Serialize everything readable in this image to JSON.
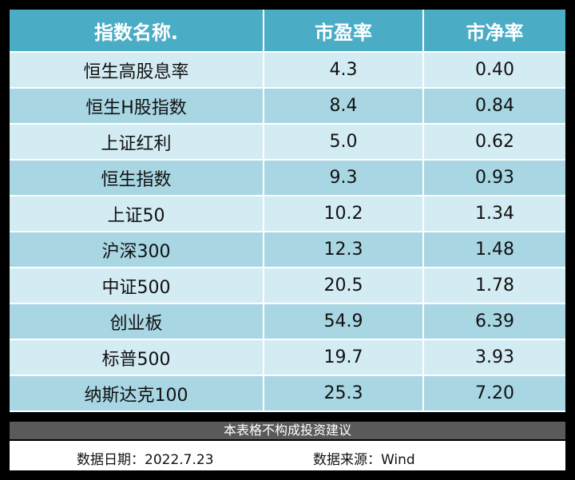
{
  "table": {
    "headers": [
      "指数名称.",
      "市盈率",
      "市净率"
    ],
    "rows": [
      {
        "name": "恒生高股息率",
        "pe": "4.3",
        "pb": "0.40"
      },
      {
        "name": "恒生H股指数",
        "pe": "8.4",
        "pb": "0.84"
      },
      {
        "name": "上证红利",
        "pe": "5.0",
        "pb": "0.62"
      },
      {
        "name": "恒生指数",
        "pe": "9.3",
        "pb": "0.93"
      },
      {
        "name": "上证50",
        "pe": "10.2",
        "pb": "1.34"
      },
      {
        "name": "沪深300",
        "pe": "12.3",
        "pb": "1.48"
      },
      {
        "name": "中证500",
        "pe": "20.5",
        "pb": "1.78"
      },
      {
        "name": "创业板",
        "pe": "54.9",
        "pb": "6.39"
      },
      {
        "name": "标普500",
        "pe": "19.7",
        "pb": "3.93"
      },
      {
        "name": "纳斯达克100",
        "pe": "25.3",
        "pb": "7.20"
      }
    ]
  },
  "footer": {
    "disclaimer": "本表格不构成投资建议",
    "date": "数据日期：2022.7.23",
    "source": "数据来源：Wind"
  },
  "colors": {
    "header_bg": "#4bacc6",
    "row_light": "#d3ebf2",
    "row_dark": "#a8d6e3",
    "disclaimer_bg": "#5a5a5a"
  }
}
